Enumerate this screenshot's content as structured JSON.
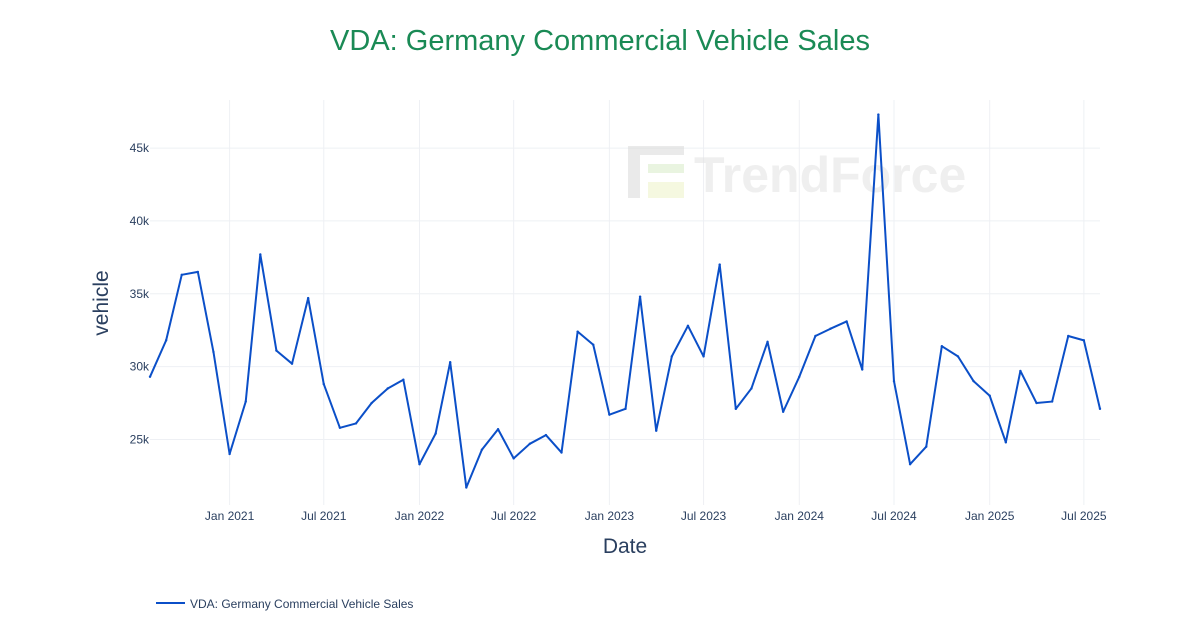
{
  "colors": {
    "title": "#1a8a55",
    "series": "#0b4fc8",
    "grid": "#eef0f4",
    "axis_text": "#2a3f5f",
    "watermark": "#e8e8e8"
  },
  "watermark": {
    "text": "TrendForce"
  },
  "legend": {
    "placement": "bottom-left"
  },
  "chart_data": {
    "type": "line",
    "title": "VDA: Germany Commercial Vehicle Sales",
    "xlabel": "Date",
    "ylabel": "vehicle",
    "grid": true,
    "xlim": [
      "2020-08-01",
      "2025-08-01"
    ],
    "ylim": [
      20500,
      48300
    ],
    "x_ticks": [
      {
        "date": "2021-01-01",
        "label": "Jan 2021"
      },
      {
        "date": "2021-07-01",
        "label": "Jul 2021"
      },
      {
        "date": "2022-01-01",
        "label": "Jan 2022"
      },
      {
        "date": "2022-07-01",
        "label": "Jul 2022"
      },
      {
        "date": "2023-01-01",
        "label": "Jan 2023"
      },
      {
        "date": "2023-07-01",
        "label": "Jul 2023"
      },
      {
        "date": "2024-01-01",
        "label": "Jan 2024"
      },
      {
        "date": "2024-07-01",
        "label": "Jul 2024"
      },
      {
        "date": "2025-01-01",
        "label": "Jan 2025"
      },
      {
        "date": "2025-07-01",
        "label": "Jul 2025"
      }
    ],
    "y_ticks": [
      {
        "value": 25000,
        "label": "25k"
      },
      {
        "value": 30000,
        "label": "30k"
      },
      {
        "value": 35000,
        "label": "35k"
      },
      {
        "value": 40000,
        "label": "40k"
      },
      {
        "value": 45000,
        "label": "45k"
      }
    ],
    "series": [
      {
        "name": "VDA: Germany Commercial Vehicle Sales",
        "x": [
          "2020-08-01",
          "2020-09-01",
          "2020-10-01",
          "2020-11-01",
          "2020-12-01",
          "2021-01-01",
          "2021-02-01",
          "2021-03-01",
          "2021-04-01",
          "2021-05-01",
          "2021-06-01",
          "2021-07-01",
          "2021-08-01",
          "2021-09-01",
          "2021-10-01",
          "2021-11-01",
          "2021-12-01",
          "2022-01-01",
          "2022-02-01",
          "2022-03-01",
          "2022-04-01",
          "2022-05-01",
          "2022-06-01",
          "2022-07-01",
          "2022-08-01",
          "2022-09-01",
          "2022-10-01",
          "2022-11-01",
          "2022-12-01",
          "2023-01-01",
          "2023-02-01",
          "2023-03-01",
          "2023-04-01",
          "2023-05-01",
          "2023-06-01",
          "2023-07-01",
          "2023-08-01",
          "2023-09-01",
          "2023-10-01",
          "2023-11-01",
          "2023-12-01",
          "2024-01-01",
          "2024-02-01",
          "2024-03-01",
          "2024-04-01",
          "2024-05-01",
          "2024-06-01",
          "2024-07-01",
          "2024-08-01",
          "2024-09-01",
          "2024-10-01",
          "2024-11-01",
          "2024-12-01",
          "2025-01-01",
          "2025-02-01",
          "2025-03-01",
          "2025-04-01",
          "2025-05-01",
          "2025-06-01",
          "2025-07-01",
          "2025-08-01"
        ],
        "values": [
          29300,
          31800,
          36300,
          36500,
          31000,
          24000,
          27600,
          37700,
          31100,
          30200,
          34700,
          28800,
          25800,
          26100,
          27500,
          28500,
          29100,
          23300,
          25400,
          30300,
          21700,
          24300,
          25700,
          23700,
          24700,
          25300,
          24100,
          32400,
          31500,
          26700,
          27100,
          34800,
          25600,
          30700,
          32800,
          30700,
          37000,
          27100,
          28500,
          31700,
          26900,
          29300,
          32100,
          32600,
          33100,
          29800,
          47300,
          29000,
          23300,
          24500,
          31400,
          30700,
          29000,
          28000,
          24800,
          29700,
          27500,
          27600,
          32100,
          31800,
          27100
        ]
      }
    ]
  }
}
